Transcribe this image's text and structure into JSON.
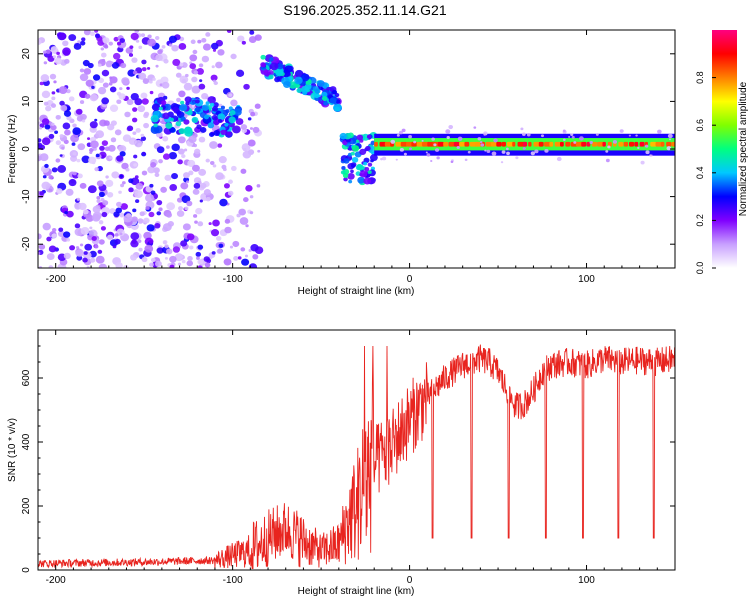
{
  "title": "S196.2025.352.11.14.G21",
  "chart_data": [
    {
      "type": "heatmap",
      "title": "S196.2025.352.11.14.G21",
      "xlabel": "Height of straight line (km)",
      "ylabel": "Frequency (Hz)",
      "xlim": [
        -210,
        150
      ],
      "ylim": [
        -25,
        25
      ],
      "xticks": [
        -200,
        -100,
        0,
        100
      ],
      "yticks": [
        -20,
        -10,
        0,
        10,
        20
      ],
      "colorbar": {
        "label": "Normalized spectral amplitude",
        "range": [
          0,
          1
        ],
        "ticks": [
          0.0,
          0.2,
          0.4,
          0.6,
          0.8
        ],
        "colors": [
          "#ffffff",
          "#c8a0ff",
          "#8000ff",
          "#0000ff",
          "#00c8ff",
          "#00ff80",
          "#80ff00",
          "#ffff00",
          "#ff8000",
          "#ff0000",
          "#ff0080"
        ]
      },
      "segments": [
        {
          "name": "diffuse noise",
          "x": [
            -210,
            -85
          ],
          "freq_hz": [
            -25,
            25
          ],
          "amplitude": 0.1
        },
        {
          "name": "cluster",
          "x": [
            -145,
            -95
          ],
          "freq_hz": [
            4,
            11
          ],
          "amplitude": 0.3
        },
        {
          "name": "descending trace",
          "x": [
            -83,
            -40
          ],
          "freq_hz_start": 18,
          "freq_hz_end": 10,
          "amplitude": 0.25
        },
        {
          "name": "transition",
          "x": [
            -38,
            -20
          ],
          "freq_hz": [
            -7,
            3
          ],
          "amplitude": 0.2
        },
        {
          "name": "steady carrier",
          "x": [
            -20,
            150
          ],
          "freq_hz": 1,
          "amplitude": 0.9
        }
      ]
    },
    {
      "type": "line",
      "xlabel": "Height of straight line (km)",
      "ylabel": "SNR (10 * v/v)",
      "xlim": [
        -210,
        150
      ],
      "ylim": [
        0,
        750
      ],
      "xticks": [
        -200,
        -100,
        0,
        100
      ],
      "yticks": [
        0,
        200,
        400,
        600
      ],
      "color": "#e8241f",
      "series": [
        {
          "name": "SNR envelope",
          "x": [
            -210,
            -150,
            -110,
            -90,
            -80,
            -70,
            -60,
            -50,
            -40,
            -35,
            -30,
            -25,
            -20,
            -15,
            -10,
            -5,
            0,
            10,
            20,
            30,
            40,
            45,
            50,
            55,
            60,
            65,
            70,
            75,
            80,
            90,
            100,
            110,
            120,
            130,
            140,
            150
          ],
          "y": [
            20,
            25,
            30,
            60,
            100,
            130,
            90,
            60,
            80,
            150,
            200,
            280,
            330,
            360,
            390,
            430,
            470,
            540,
            600,
            640,
            660,
            650,
            620,
            560,
            510,
            520,
            560,
            620,
            640,
            650,
            640,
            660,
            650,
            655,
            650,
            660
          ]
        }
      ],
      "dropouts_x": [
        13,
        35,
        56,
        77,
        98,
        118,
        138
      ]
    }
  ]
}
